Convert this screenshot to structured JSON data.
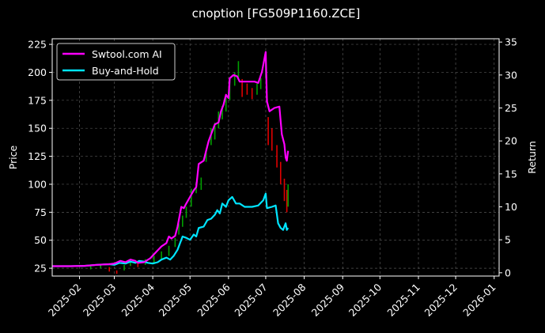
{
  "chart_data": {
    "type": "line",
    "title": "cnoption [FG509P1160.ZCE]",
    "ylabel": "Price",
    "y2label": "Return",
    "x_ticks": [
      "2025-02",
      "2025-03",
      "2025-04",
      "2025-05",
      "2025-06",
      "2025-07",
      "2025-08",
      "2025-09",
      "2025-10",
      "2025-11",
      "2025-12",
      "2026-01"
    ],
    "xlim": [
      "2025-01-10",
      "2026-01-05"
    ],
    "ylim": [
      18,
      230
    ],
    "y_ticks": [
      25,
      50,
      75,
      100,
      125,
      150,
      175,
      200,
      225
    ],
    "y2lim": [
      -0.5,
      35.5
    ],
    "y2_ticks": [
      0,
      5,
      10,
      15,
      20,
      25,
      30,
      35
    ],
    "grid": true,
    "legend_position": "upper-left",
    "background": "#000000",
    "colors": {
      "series1": "#ff00ff",
      "series2": "#00e5ff",
      "up": "#00a000",
      "down": "#e00000"
    },
    "series": [
      {
        "name": "Swtool.com AI",
        "axis": "right",
        "points": [
          [
            "2025-01-10",
            1.0
          ],
          [
            "2025-01-25",
            1.0
          ],
          [
            "2025-02-05",
            1.05
          ],
          [
            "2025-02-15",
            1.2
          ],
          [
            "2025-02-25",
            1.3
          ],
          [
            "2025-03-01",
            1.4
          ],
          [
            "2025-03-06",
            1.8
          ],
          [
            "2025-03-10",
            1.6
          ],
          [
            "2025-03-14",
            2.0
          ],
          [
            "2025-03-18",
            1.8
          ],
          [
            "2025-03-20",
            1.5
          ],
          [
            "2025-03-25",
            1.6
          ],
          [
            "2025-03-30",
            2.2
          ],
          [
            "2025-04-03",
            3.0
          ],
          [
            "2025-04-08",
            4.0
          ],
          [
            "2025-04-12",
            4.5
          ],
          [
            "2025-04-14",
            5.5
          ],
          [
            "2025-04-16",
            5.2
          ],
          [
            "2025-04-19",
            5.6
          ],
          [
            "2025-04-21",
            7.0
          ],
          [
            "2025-04-24",
            10.0
          ],
          [
            "2025-04-26",
            9.8
          ],
          [
            "2025-04-28",
            10.5
          ],
          [
            "2025-05-01",
            11.5
          ],
          [
            "2025-05-04",
            12.5
          ],
          [
            "2025-05-06",
            13.0
          ],
          [
            "2025-05-08",
            16.5
          ],
          [
            "2025-05-12",
            17.0
          ],
          [
            "2025-05-14",
            18.5
          ],
          [
            "2025-05-16",
            20.0
          ],
          [
            "2025-05-18",
            21.0
          ],
          [
            "2025-05-21",
            22.5
          ],
          [
            "2025-05-24",
            22.8
          ],
          [
            "2025-05-26",
            24.5
          ],
          [
            "2025-05-28",
            25.5
          ],
          [
            "2025-05-30",
            27.0
          ],
          [
            "2025-06-01",
            26.5
          ],
          [
            "2025-06-02",
            29.5
          ],
          [
            "2025-06-05",
            30.0
          ],
          [
            "2025-06-08",
            29.8
          ],
          [
            "2025-06-10",
            29.0
          ],
          [
            "2025-06-14",
            29.0
          ],
          [
            "2025-06-18",
            29.0
          ],
          [
            "2025-06-22",
            29.0
          ],
          [
            "2025-06-25",
            28.8
          ],
          [
            "2025-06-28",
            30.5
          ],
          [
            "2025-07-01",
            33.5
          ],
          [
            "2025-07-02",
            26.0
          ],
          [
            "2025-07-04",
            24.5
          ],
          [
            "2025-07-08",
            25.0
          ],
          [
            "2025-07-12",
            25.2
          ],
          [
            "2025-07-14",
            21.0
          ],
          [
            "2025-07-16",
            19.5
          ],
          [
            "2025-07-17",
            17.5
          ],
          [
            "2025-07-18",
            17.0
          ],
          [
            "2025-07-19",
            18.5
          ]
        ]
      },
      {
        "name": "Buy-and-Hold",
        "axis": "right",
        "points": [
          [
            "2025-01-10",
            1.0
          ],
          [
            "2025-01-25",
            1.0
          ],
          [
            "2025-02-05",
            1.05
          ],
          [
            "2025-02-15",
            1.2
          ],
          [
            "2025-02-25",
            1.3
          ],
          [
            "2025-03-01",
            1.2
          ],
          [
            "2025-03-05",
            1.5
          ],
          [
            "2025-03-10",
            1.4
          ],
          [
            "2025-03-14",
            1.7
          ],
          [
            "2025-03-18",
            1.5
          ],
          [
            "2025-03-21",
            1.8
          ],
          [
            "2025-03-25",
            1.7
          ],
          [
            "2025-03-28",
            1.5
          ],
          [
            "2025-04-01",
            1.4
          ],
          [
            "2025-04-05",
            1.6
          ],
          [
            "2025-04-08",
            2.0
          ],
          [
            "2025-04-12",
            2.3
          ],
          [
            "2025-04-15",
            2.0
          ],
          [
            "2025-04-18",
            2.6
          ],
          [
            "2025-04-21",
            3.5
          ],
          [
            "2025-04-25",
            5.5
          ],
          [
            "2025-04-28",
            5.3
          ],
          [
            "2025-05-01",
            5.0
          ],
          [
            "2025-05-04",
            5.8
          ],
          [
            "2025-05-06",
            5.5
          ],
          [
            "2025-05-08",
            6.8
          ],
          [
            "2025-05-12",
            7.0
          ],
          [
            "2025-05-15",
            8.0
          ],
          [
            "2025-05-18",
            8.2
          ],
          [
            "2025-05-21",
            8.8
          ],
          [
            "2025-05-23",
            9.5
          ],
          [
            "2025-05-25",
            9.0
          ],
          [
            "2025-05-27",
            10.5
          ],
          [
            "2025-05-30",
            10.0
          ],
          [
            "2025-06-01",
            11.0
          ],
          [
            "2025-06-04",
            11.5
          ],
          [
            "2025-06-07",
            10.5
          ],
          [
            "2025-06-10",
            10.5
          ],
          [
            "2025-06-14",
            10.0
          ],
          [
            "2025-06-20",
            10.0
          ],
          [
            "2025-06-25",
            10.2
          ],
          [
            "2025-06-29",
            11.0
          ],
          [
            "2025-07-01",
            12.0
          ],
          [
            "2025-07-02",
            9.8
          ],
          [
            "2025-07-06",
            10.0
          ],
          [
            "2025-07-09",
            10.2
          ],
          [
            "2025-07-11",
            7.5
          ],
          [
            "2025-07-13",
            6.8
          ],
          [
            "2025-07-15",
            6.5
          ],
          [
            "2025-07-17",
            7.5
          ],
          [
            "2025-07-18",
            6.5
          ],
          [
            "2025-07-19",
            6.8
          ]
        ]
      }
    ],
    "candles": [
      [
        "2025-02-10",
        24,
        27
      ],
      [
        "2025-02-18",
        25,
        28
      ],
      [
        "2025-02-25",
        22,
        26
      ],
      [
        "2025-03-03",
        20,
        23
      ],
      [
        "2025-03-09",
        23,
        28
      ],
      [
        "2025-03-14",
        27,
        32
      ],
      [
        "2025-03-20",
        26,
        30
      ],
      [
        "2025-03-26",
        28,
        33
      ],
      [
        "2025-04-02",
        30,
        36
      ],
      [
        "2025-04-08",
        33,
        40
      ],
      [
        "2025-04-14",
        36,
        45
      ],
      [
        "2025-04-19",
        44,
        52
      ],
      [
        "2025-04-22",
        55,
        65
      ],
      [
        "2025-04-25",
        62,
        72
      ],
      [
        "2025-04-28",
        70,
        80
      ],
      [
        "2025-05-02",
        80,
        96
      ],
      [
        "2025-05-06",
        92,
        102
      ],
      [
        "2025-05-10",
        95,
        106
      ],
      [
        "2025-05-14",
        120,
        130
      ],
      [
        "2025-05-18",
        135,
        150
      ],
      [
        "2025-05-21",
        140,
        155
      ],
      [
        "2025-05-24",
        150,
        165
      ],
      [
        "2025-05-27",
        158,
        170
      ],
      [
        "2025-05-30",
        165,
        180
      ],
      [
        "2025-06-02",
        175,
        192
      ],
      [
        "2025-06-06",
        188,
        200
      ],
      [
        "2025-06-09",
        195,
        210
      ],
      [
        "2025-06-12",
        178,
        194
      ],
      [
        "2025-06-16",
        180,
        190
      ],
      [
        "2025-06-20",
        176,
        186
      ],
      [
        "2025-06-24",
        180,
        190
      ],
      [
        "2025-06-27",
        185,
        195
      ],
      [
        "2025-07-01",
        195,
        215
      ],
      [
        "2025-07-03",
        135,
        160
      ],
      [
        "2025-07-06",
        130,
        150
      ],
      [
        "2025-07-10",
        115,
        135
      ],
      [
        "2025-07-13",
        100,
        120
      ],
      [
        "2025-07-16",
        85,
        105
      ],
      [
        "2025-07-18",
        75,
        95
      ],
      [
        "2025-07-19",
        80,
        100
      ]
    ]
  }
}
